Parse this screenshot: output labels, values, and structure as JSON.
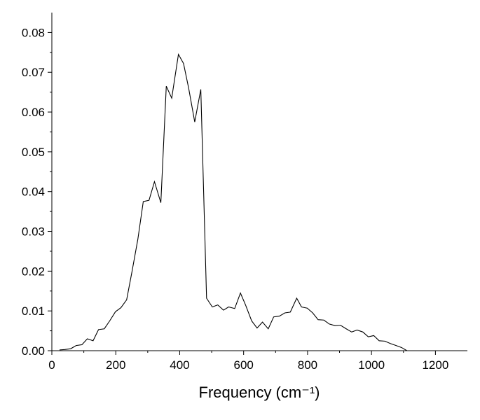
{
  "chart_data": {
    "type": "line",
    "x_label": "Frequency (cm⁻¹)",
    "color": "#000000",
    "x": [
      24,
      41,
      59,
      76,
      94,
      111,
      129,
      146,
      164,
      181,
      199,
      216,
      234,
      251,
      269,
      286,
      304,
      321,
      341,
      358,
      375,
      396,
      412,
      428,
      447,
      466,
      484,
      502,
      519,
      537,
      553,
      572,
      590,
      606,
      625,
      642,
      659,
      677,
      694,
      712,
      729,
      746,
      766,
      781,
      799,
      816,
      833,
      851,
      868,
      886,
      903,
      921,
      938,
      955,
      973,
      990,
      1007,
      1024,
      1042,
      1059,
      1077,
      1094,
      1111
    ],
    "values": [
      0.0002,
      0.0003,
      0.0005,
      0.0013,
      0.0015,
      0.003,
      0.0025,
      0.0053,
      0.0055,
      0.0075,
      0.0098,
      0.0108,
      0.0128,
      0.02,
      0.028,
      0.0375,
      0.0378,
      0.0425,
      0.0372,
      0.0665,
      0.0635,
      0.0745,
      0.0722,
      0.066,
      0.0575,
      0.0657,
      0.0132,
      0.011,
      0.0115,
      0.0102,
      0.011,
      0.0106,
      0.0145,
      0.0115,
      0.0075,
      0.0057,
      0.0072,
      0.0055,
      0.0085,
      0.0087,
      0.0095,
      0.0097,
      0.0132,
      0.011,
      0.0107,
      0.0095,
      0.0078,
      0.0077,
      0.0067,
      0.0063,
      0.0064,
      0.0055,
      0.0047,
      0.0052,
      0.0047,
      0.0035,
      0.0038,
      0.0025,
      0.0024,
      0.0018,
      0.0013,
      0.0008,
      0
    ],
    "xlim": [
      0,
      1300
    ],
    "xticks": [
      0,
      200,
      400,
      600,
      800,
      1000,
      1200
    ],
    "ylim": [
      0,
      0.085
    ],
    "yticks": [
      {
        "value": 0,
        "label": "0.00"
      },
      {
        "value": 0.01,
        "label": "0.01"
      },
      {
        "value": 0.02,
        "label": "0.02"
      },
      {
        "value": 0.03,
        "label": "0.03"
      },
      {
        "value": 0.04,
        "label": "0.04"
      },
      {
        "value": 0.05,
        "label": "0.05"
      },
      {
        "value": 0.06,
        "label": "0.06"
      },
      {
        "value": 0.07,
        "label": "0.07"
      },
      {
        "value": 0.08,
        "label": "0.08"
      }
    ]
  }
}
